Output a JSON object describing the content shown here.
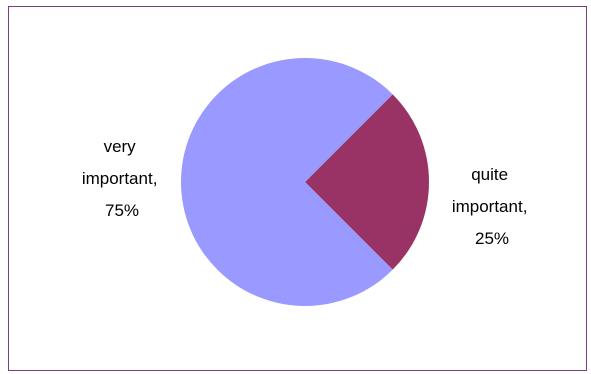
{
  "chart_data": {
    "type": "pie",
    "title": "",
    "start_angle_deg": 45,
    "direction": "clockwise",
    "slices": [
      {
        "category": "quite important",
        "value": 25,
        "percent_label": "25%",
        "color": "#993366",
        "label_lines": [
          "quite",
          "important,",
          "25%"
        ]
      },
      {
        "category": "very important",
        "value": 75,
        "percent_label": "75%",
        "color": "#9999ff",
        "label_lines": [
          "very",
          "important,",
          "75%"
        ]
      }
    ],
    "legend": "none",
    "data_labels": "category name, percentage"
  }
}
